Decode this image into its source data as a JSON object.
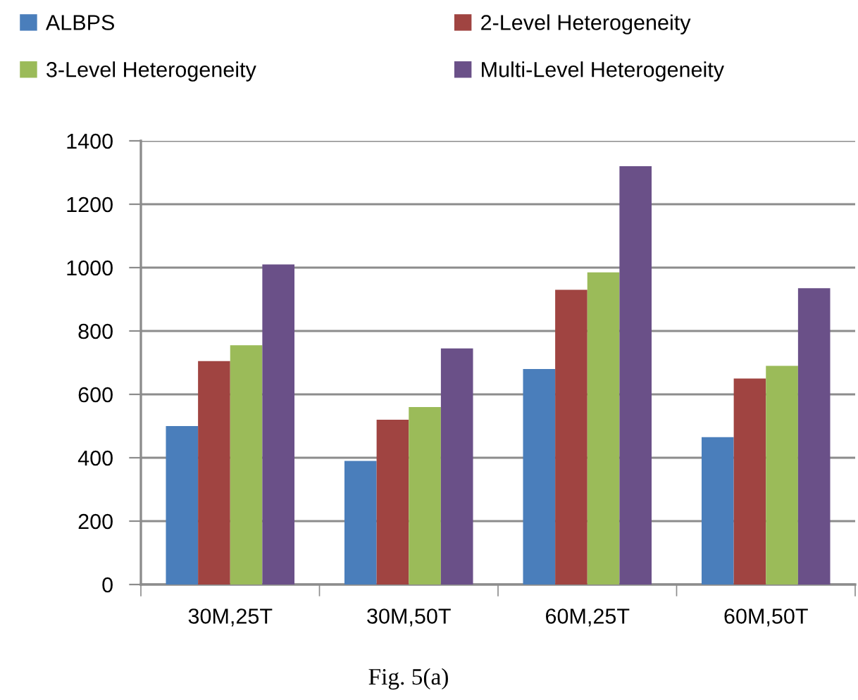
{
  "chart_data": {
    "type": "bar",
    "categories": [
      "30M,25T",
      "30M,50T",
      "60M,25T",
      "60M,50T"
    ],
    "series": [
      {
        "name": "ALBPS",
        "color": "#4a7ebb",
        "values": [
          500,
          390,
          680,
          465
        ]
      },
      {
        "name": "2-Level Heterogeneity",
        "color": "#a04441",
        "values": [
          705,
          520,
          930,
          650
        ]
      },
      {
        "name": "3-Level Heterogeneity",
        "color": "#9bbb59",
        "values": [
          755,
          560,
          985,
          690
        ]
      },
      {
        "name": "Multi-Level Heterogeneity",
        "color": "#6a5088",
        "values": [
          1010,
          745,
          1320,
          935
        ]
      }
    ],
    "ylim": [
      0,
      1400
    ],
    "yticks": [
      0,
      200,
      400,
      600,
      800,
      1000,
      1200,
      1400
    ],
    "grid": "y",
    "legend": "top",
    "annotations": [
      "Fig. 5(a)"
    ]
  }
}
